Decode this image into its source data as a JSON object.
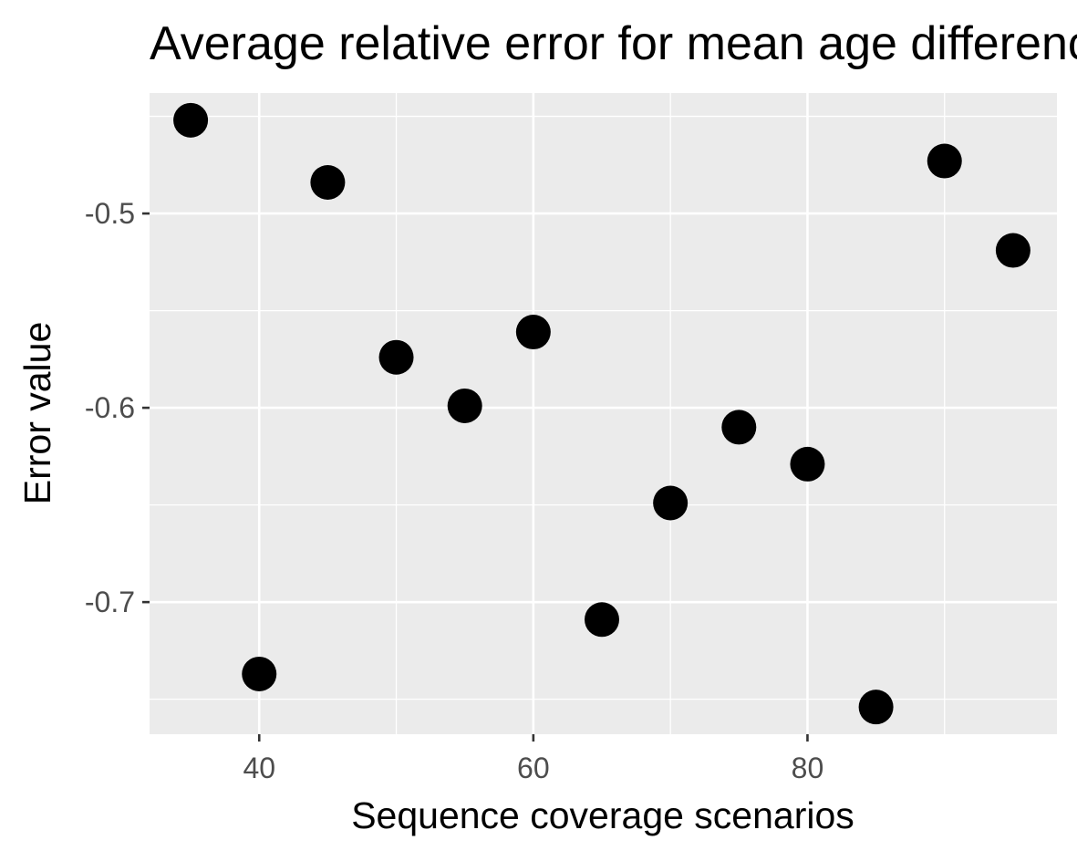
{
  "chart_data": {
    "type": "scatter",
    "title": "Average relative error for mean age difference",
    "xlabel": "Sequence coverage scenarios",
    "ylabel": "Error value",
    "x": [
      35,
      40,
      45,
      50,
      55,
      60,
      65,
      70,
      75,
      80,
      85,
      90,
      95
    ],
    "y": [
      -0.452,
      -0.737,
      -0.484,
      -0.574,
      -0.599,
      -0.561,
      -0.709,
      -0.649,
      -0.61,
      -0.629,
      -0.754,
      -0.473,
      -0.519
    ],
    "xlim": [
      32,
      98.2
    ],
    "ylim": [
      -0.768,
      -0.438
    ],
    "x_ticks": [
      40,
      60,
      80
    ],
    "x_tick_labels": [
      "40",
      "60",
      "80"
    ],
    "y_ticks": [
      -0.5,
      -0.6,
      -0.7
    ],
    "y_tick_labels": [
      "-0.5",
      "-0.6",
      "-0.7"
    ],
    "grid": true,
    "panel_color": "#ebebeb",
    "grid_color": "#ffffff",
    "point_color": "#000000"
  }
}
